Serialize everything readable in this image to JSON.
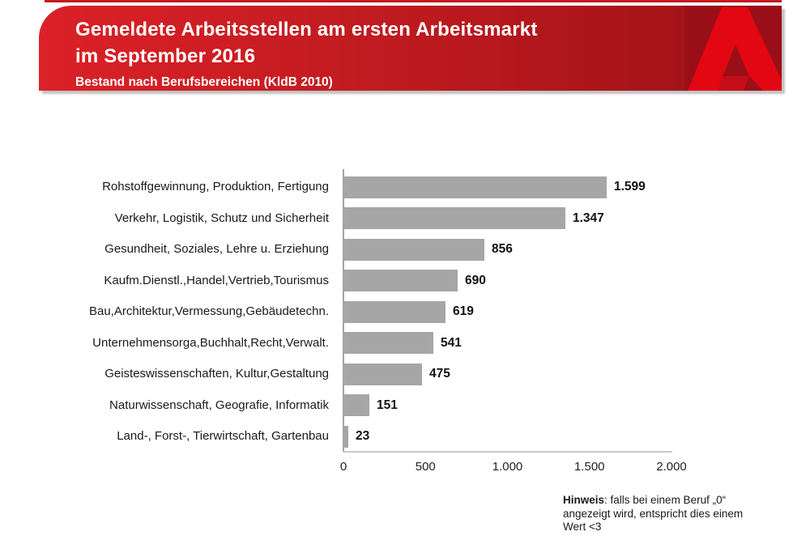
{
  "header": {
    "title_line1": "Gemeldete Arbeitsstellen am ersten Arbeitsmarkt",
    "title_line2": "im September 2016",
    "subtitle": "Bestand nach Berufsbereichen (KldB 2010)"
  },
  "chart_data": {
    "type": "bar",
    "orientation": "horizontal",
    "title": "Gemeldete Arbeitsstellen am ersten Arbeitsmarkt im September 2016",
    "subtitle": "Bestand nach Berufsbereichen (KldB 2010)",
    "categories": [
      "Rohstoffgewinnung, Produktion, Fertigung",
      "Verkehr, Logistik, Schutz und Sicherheit",
      "Gesundheit, Soziales, Lehre u. Erziehung",
      "Kaufm.Dienstl.,Handel,Vertrieb,Tourismus",
      "Bau,Architektur,Vermessung,Gebäudetechn.",
      "Unternehmensorga,Buchhalt,Recht,Verwalt.",
      "Geisteswissenschaften, Kultur,Gestaltung",
      "Naturwissenschaft, Geografie, Informatik",
      "Land-, Forst-, Tierwirtschaft, Gartenbau"
    ],
    "values": [
      1599,
      1347,
      856,
      690,
      619,
      541,
      475,
      151,
      23
    ],
    "value_labels": [
      "1.599",
      "1.347",
      "856",
      "690",
      "619",
      "541",
      "475",
      "151",
      "23"
    ],
    "x_ticks": [
      "0",
      "500",
      "1.000",
      "1.500",
      "2.000"
    ],
    "xlim": [
      0,
      2000
    ],
    "bar_color": "#a6a6a6",
    "grid": false,
    "legend": false
  },
  "note": {
    "label": "Hinweis",
    "text": ": falls bei einem Beruf „0“ angezeigt wird, entspricht dies einem Wert <3"
  },
  "colors": {
    "banner_red_left": "#db2127",
    "banner_red_right": "#9c1016",
    "logo_bright_red": "#e30613",
    "logo_dark_red": "#9a0f17",
    "bar_gray": "#a6a6a6"
  },
  "icons": {
    "logo": "bundesagentur-fuer-arbeit-a-logo"
  }
}
